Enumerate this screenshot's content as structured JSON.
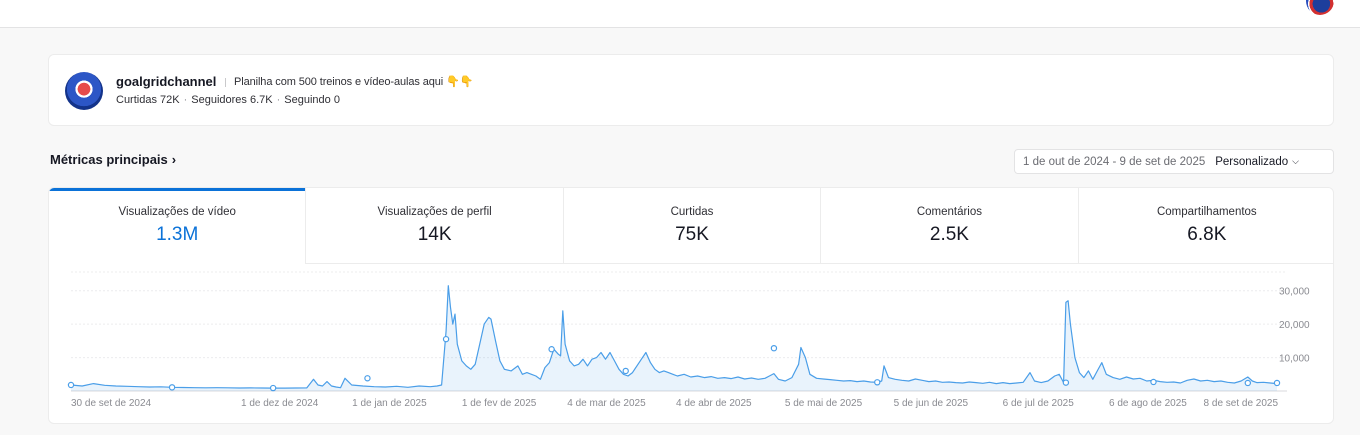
{
  "profile": {
    "username": "goalgridchannel",
    "bio": "Planilha com 500 treinos e vídeo-aulas aqui 👇👇",
    "stats": [
      {
        "label": "Curtidas 72K"
      },
      {
        "label": "Seguidores 6.7K"
      },
      {
        "label": "Seguindo 0"
      }
    ]
  },
  "metrics": {
    "title": "Métricas principais",
    "date_range": "1 de out de 2024 - 9 de set de 2025",
    "date_mode": "Personalizado",
    "tabs": [
      {
        "label": "Visualizações de vídeo",
        "value": "1.3M",
        "active": true
      },
      {
        "label": "Visualizações de perfil",
        "value": "14K",
        "active": false
      },
      {
        "label": "Curtidas",
        "value": "75K",
        "active": false
      },
      {
        "label": "Comentários",
        "value": "2.5K",
        "active": false
      },
      {
        "label": "Compartilhamentos",
        "value": "6.8K",
        "active": false
      }
    ]
  },
  "chart_data": {
    "type": "area",
    "x_tick_labels": [
      "30 de set de 2024",
      "1 de dez de 2024",
      "1 de jan de 2025",
      "1 de fev de 2025",
      "4 de mar de 2025",
      "4 de abr de 2025",
      "5 de mai de 2025",
      "5 de jun de 2025",
      "6 de jul de 2025",
      "6 de ago de 2025",
      "8 de set de 2025"
    ],
    "y_ticks": [
      10000,
      20000,
      30000
    ],
    "y_tick_labels": [
      "10,000",
      "20,000",
      "30,000"
    ],
    "ylim": [
      0,
      32000
    ],
    "color": "#4a9ee8",
    "grid": true,
    "points": [
      [
        0,
        1800
      ],
      [
        5,
        1500
      ],
      [
        10,
        2200
      ],
      [
        15,
        1700
      ],
      [
        20,
        1500
      ],
      [
        25,
        1400
      ],
      [
        30,
        1300
      ],
      [
        35,
        1200
      ],
      [
        40,
        1250
      ],
      [
        45,
        1100
      ],
      [
        50,
        1050
      ],
      [
        55,
        1000
      ],
      [
        60,
        950
      ],
      [
        65,
        980
      ],
      [
        70,
        950
      ],
      [
        75,
        900
      ],
      [
        80,
        930
      ],
      [
        85,
        900
      ],
      [
        90,
        880
      ],
      [
        95,
        860
      ],
      [
        100,
        900
      ],
      [
        105,
        920
      ],
      [
        108,
        3500
      ],
      [
        110,
        1800
      ],
      [
        112,
        1500
      ],
      [
        114,
        2800
      ],
      [
        116,
        1500
      ],
      [
        118,
        1200
      ],
      [
        120,
        1000
      ],
      [
        122,
        3800
      ],
      [
        125,
        1800
      ],
      [
        130,
        1500
      ],
      [
        135,
        1300
      ],
      [
        140,
        1200
      ],
      [
        145,
        1400
      ],
      [
        150,
        1100
      ],
      [
        155,
        1500
      ],
      [
        160,
        1300
      ],
      [
        163,
        1500
      ],
      [
        165,
        1800
      ],
      [
        167,
        18000
      ],
      [
        168,
        31500
      ],
      [
        169,
        25000
      ],
      [
        170,
        20000
      ],
      [
        171,
        23000
      ],
      [
        172,
        14000
      ],
      [
        174,
        9000
      ],
      [
        176,
        7500
      ],
      [
        178,
        6500
      ],
      [
        180,
        8000
      ],
      [
        182,
        14000
      ],
      [
        184,
        20000
      ],
      [
        186,
        22000
      ],
      [
        187,
        21500
      ],
      [
        189,
        15000
      ],
      [
        191,
        9000
      ],
      [
        193,
        6500
      ],
      [
        196,
        6000
      ],
      [
        199,
        7500
      ],
      [
        201,
        5000
      ],
      [
        203,
        5500
      ],
      [
        205,
        5000
      ],
      [
        207,
        4500
      ],
      [
        209,
        3500
      ],
      [
        211,
        7000
      ],
      [
        213,
        8500
      ],
      [
        215,
        12500
      ],
      [
        217,
        11000
      ],
      [
        218,
        10500
      ],
      [
        219,
        24000
      ],
      [
        220,
        14000
      ],
      [
        222,
        9000
      ],
      [
        224,
        7500
      ],
      [
        226,
        8000
      ],
      [
        228,
        9500
      ],
      [
        230,
        7500
      ],
      [
        232,
        9500
      ],
      [
        234,
        10000
      ],
      [
        236,
        11500
      ],
      [
        238,
        9500
      ],
      [
        240,
        11500
      ],
      [
        242,
        9000
      ],
      [
        244,
        6500
      ],
      [
        246,
        5000
      ],
      [
        248,
        4500
      ],
      [
        250,
        5500
      ],
      [
        252,
        7500
      ],
      [
        254,
        9500
      ],
      [
        256,
        11500
      ],
      [
        258,
        8500
      ],
      [
        260,
        6500
      ],
      [
        262,
        5500
      ],
      [
        264,
        6000
      ],
      [
        266,
        5500
      ],
      [
        268,
        5000
      ],
      [
        270,
        4500
      ],
      [
        273,
        5000
      ],
      [
        276,
        4200
      ],
      [
        279,
        4500
      ],
      [
        282,
        4000
      ],
      [
        285,
        4300
      ],
      [
        288,
        3800
      ],
      [
        291,
        4000
      ],
      [
        294,
        3700
      ],
      [
        297,
        4200
      ],
      [
        300,
        3600
      ],
      [
        303,
        3900
      ],
      [
        306,
        3500
      ],
      [
        309,
        3800
      ],
      [
        311,
        4500
      ],
      [
        313,
        5200
      ],
      [
        315,
        3500
      ],
      [
        318,
        3000
      ],
      [
        321,
        4000
      ],
      [
        324,
        8000
      ],
      [
        325,
        13000
      ],
      [
        327,
        10000
      ],
      [
        329,
        5000
      ],
      [
        332,
        3800
      ],
      [
        335,
        3600
      ],
      [
        338,
        3400
      ],
      [
        341,
        3200
      ],
      [
        344,
        3000
      ],
      [
        347,
        3100
      ],
      [
        350,
        2800
      ],
      [
        353,
        3000
      ],
      [
        356,
        2700
      ],
      [
        359,
        2600
      ],
      [
        361,
        3000
      ],
      [
        362,
        7500
      ],
      [
        364,
        4000
      ],
      [
        367,
        3500
      ],
      [
        370,
        3200
      ],
      [
        373,
        3000
      ],
      [
        376,
        3600
      ],
      [
        379,
        3200
      ],
      [
        382,
        2800
      ],
      [
        385,
        3000
      ],
      [
        388,
        2600
      ],
      [
        391,
        2700
      ],
      [
        394,
        2500
      ],
      [
        397,
        2400
      ],
      [
        400,
        2700
      ],
      [
        403,
        2500
      ],
      [
        406,
        2300
      ],
      [
        409,
        2600
      ],
      [
        412,
        2200
      ],
      [
        415,
        2500
      ],
      [
        418,
        2200
      ],
      [
        421,
        2400
      ],
      [
        424,
        2600
      ],
      [
        427,
        5500
      ],
      [
        429,
        3000
      ],
      [
        432,
        2500
      ],
      [
        435,
        3000
      ],
      [
        438,
        4500
      ],
      [
        440,
        5000
      ],
      [
        442,
        2500
      ],
      [
        443,
        26500
      ],
      [
        444,
        27000
      ],
      [
        445,
        20000
      ],
      [
        447,
        10000
      ],
      [
        449,
        5500
      ],
      [
        451,
        4000
      ],
      [
        453,
        6000
      ],
      [
        455,
        3500
      ],
      [
        457,
        6000
      ],
      [
        459,
        8500
      ],
      [
        461,
        5000
      ],
      [
        464,
        4000
      ],
      [
        467,
        3500
      ],
      [
        470,
        4200
      ],
      [
        473,
        3600
      ],
      [
        476,
        3800
      ],
      [
        479,
        3000
      ],
      [
        482,
        3200
      ],
      [
        485,
        2800
      ],
      [
        488,
        2600
      ],
      [
        491,
        2700
      ],
      [
        494,
        2400
      ],
      [
        497,
        3200
      ],
      [
        500,
        3600
      ],
      [
        503,
        3000
      ],
      [
        506,
        3200
      ],
      [
        509,
        2800
      ],
      [
        512,
        3000
      ],
      [
        515,
        2600
      ],
      [
        518,
        2400
      ],
      [
        521,
        3000
      ],
      [
        524,
        4200
      ],
      [
        526,
        3000
      ],
      [
        528,
        2500
      ],
      [
        531,
        2600
      ],
      [
        534,
        2400
      ],
      [
        537,
        2200
      ]
    ],
    "markers": [
      [
        0,
        1800
      ],
      [
        45,
        1100
      ],
      [
        90,
        880
      ],
      [
        132,
        3800
      ],
      [
        167,
        15500
      ],
      [
        214,
        12500
      ],
      [
        247,
        6000
      ],
      [
        313,
        12800
      ],
      [
        359,
        2600
      ],
      [
        443,
        2500
      ],
      [
        482,
        2700
      ],
      [
        524,
        2400
      ],
      [
        537,
        2400
      ]
    ]
  }
}
